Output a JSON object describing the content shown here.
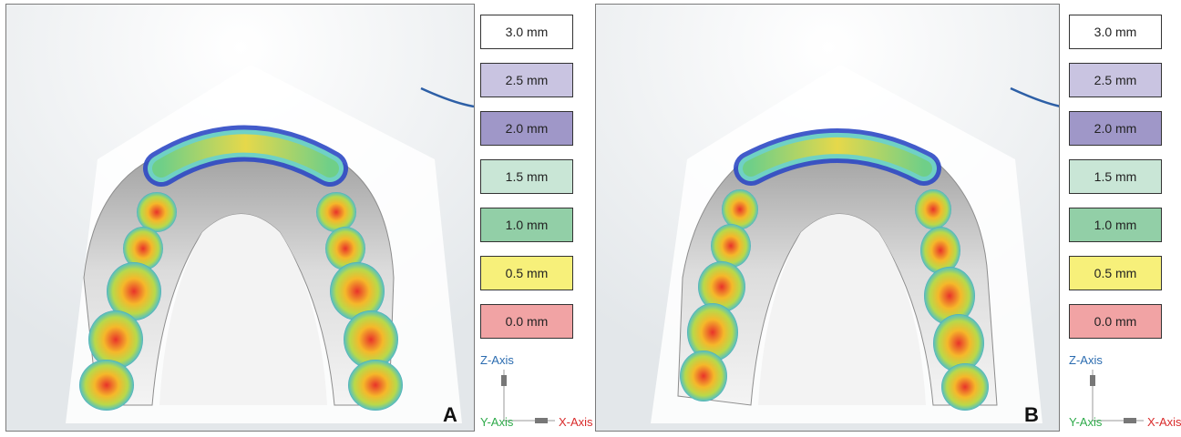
{
  "panels": [
    {
      "letter": "A"
    },
    {
      "letter": "B"
    }
  ],
  "legend": {
    "entries": [
      {
        "label": "3.0 mm",
        "color": "#ffffff"
      },
      {
        "label": "2.5 mm",
        "color": "#c9c4e1"
      },
      {
        "label": "2.0 mm",
        "color": "#9f97c8"
      },
      {
        "label": "1.5 mm",
        "color": "#c9e6d6"
      },
      {
        "label": "1.0 mm",
        "color": "#92cfa7"
      },
      {
        "label": "0.5 mm",
        "color": "#f7f07a"
      },
      {
        "label": "0.0 mm",
        "color": "#f1a3a4"
      }
    ]
  },
  "axes": {
    "z_label": "Z-Axis",
    "y_label": "Y-Axis",
    "x_label": "X-Axis",
    "z_color": "#2b6cb0",
    "y_color": "#2eaa4a",
    "x_color": "#d92b2b"
  }
}
